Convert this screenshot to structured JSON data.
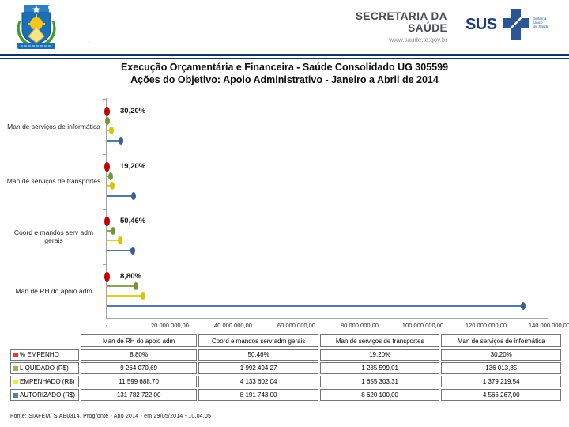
{
  "header": {
    "logo": "tocantins-coat-of-arms",
    "org_line1": "SECRETARIA DA",
    "org_line2": "SAÚDE",
    "website": "www.saude.to.gov.br",
    "dot": ".",
    "sus": {
      "label": "SUS",
      "tagline_lines": [
        "Sistema",
        "Único",
        "de Saúde"
      ]
    }
  },
  "title": {
    "line1": "Execução Orçamentária e Financeira - Saúde Consolidado UG 305599",
    "line2": "Ações do Objetivo: Apoio Administrativo - Janeiro a Abril de 2014"
  },
  "chart_data": {
    "type": "bar",
    "orientation": "horizontal",
    "xlim": [
      0,
      140000000
    ],
    "grid": false,
    "x_ticks": [
      "-",
      "20 000 000,00",
      "40 000 000,00",
      "60 000 000,00",
      "80 000 000,00",
      "100 000 000,00",
      "120 000 000,00",
      "140 000 000,00"
    ],
    "categories": [
      "Man de serviços de informática",
      "Man de serviços de transportes",
      "Coord e mandos serv adm gerais",
      "Man de RH do apoio adm"
    ],
    "percent_labels": [
      "30,20%",
      "19,20%",
      "50,46%",
      "8,80%"
    ],
    "series": [
      {
        "name": "% EMPENHO",
        "color": "#c00000",
        "values": [
          30.2,
          19.2,
          50.46,
          8.8
        ]
      },
      {
        "name": "LIQUIDADO (R$)",
        "color": "#77933c",
        "values": [
          136013.85,
          1235599.01,
          1992494.27,
          9264070.69
        ]
      },
      {
        "name": "EMPENHADO (R$)",
        "color": "#d9c600",
        "values": [
          1379219.54,
          1655303.31,
          4133602.04,
          11599688.7
        ]
      },
      {
        "name": "AUTORIZADO (R$)",
        "color": "#376092",
        "values": [
          4566267.0,
          8620100.0,
          8191743.0,
          131782722.0
        ]
      }
    ]
  },
  "table": {
    "corner": "",
    "column_headers": [
      "Man de RH do apoio adm",
      "Coord e mandos serv adm gerais",
      "Man de serviços de transportes",
      "Man de serviços de informática"
    ],
    "rows": [
      {
        "label": "% EMPENHO",
        "swatch": "#e03c31",
        "values": [
          "8,80%",
          "50,46%",
          "19,20%",
          "30,20%"
        ]
      },
      {
        "label": "LIQUIDADO (R$)",
        "swatch": "#a2af62",
        "values": [
          "9 264 070,69",
          "1 992 494,27",
          "1 235 599,01",
          "136 013,85"
        ]
      },
      {
        "label": "EMPENHADO (R$)",
        "swatch": "#f0e93c",
        "values": [
          "11 599 688,70",
          "4 133 602,04",
          "1 655 303,31",
          "1 379 219,54"
        ]
      },
      {
        "label": "AUTORIZADO (R$)",
        "swatch": "#5b80a8",
        "values": [
          "131 782 722,00",
          "8 191 743,00",
          "8 620 100,00",
          "4 566 267,00"
        ]
      }
    ]
  },
  "footer": {
    "source": "Fonte: SIAFEM/ SIAB0314. Progfonte - Ano 2014 - em 29/05/2014 - 10.04.05"
  }
}
